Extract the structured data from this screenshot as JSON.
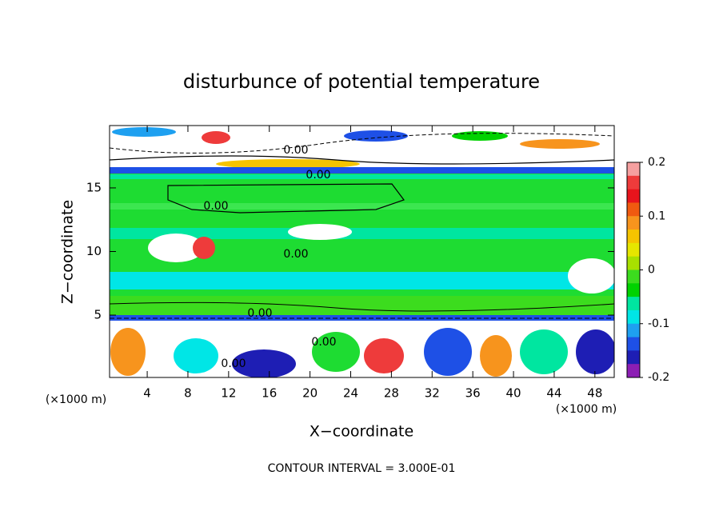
{
  "chart_data": {
    "type": "contour",
    "title": "disturbunce of potential temperature",
    "xlabel": "X−coordinate",
    "ylabel": "Z−coordinate",
    "x_unit_left": "(×1000 m)",
    "x_unit_right": "(×1000 m)",
    "footer": "CONTOUR INTERVAL = 3.000E-01",
    "xlim": [
      0.3,
      49.9
    ],
    "xticks": [
      4,
      8,
      12,
      16,
      20,
      24,
      28,
      32,
      36,
      40,
      44,
      48
    ],
    "ylim": [
      0.1,
      19.9
    ],
    "yticks": [
      5,
      10,
      15
    ],
    "contour_labels": [
      "0.00",
      "0.00",
      "0.00",
      "0.00",
      "0.00",
      "0.00",
      "0.00"
    ],
    "colorbar": {
      "lim": [
        -0.2,
        0.2
      ],
      "ticks": [
        0.2,
        0.1,
        0,
        -0.1,
        -0.2
      ],
      "colors": [
        "#f5a0a0",
        "#ee3b3b",
        "#e8141c",
        "#f05a10",
        "#f7941d",
        "#f5c400",
        "#e6e600",
        "#a8e000",
        "#3cdc1e",
        "#00d200",
        "#00e6a0",
        "#00e6e6",
        "#1ea0f0",
        "#1e50e6",
        "#1e1eb4",
        "#8c1eb4"
      ]
    }
  }
}
